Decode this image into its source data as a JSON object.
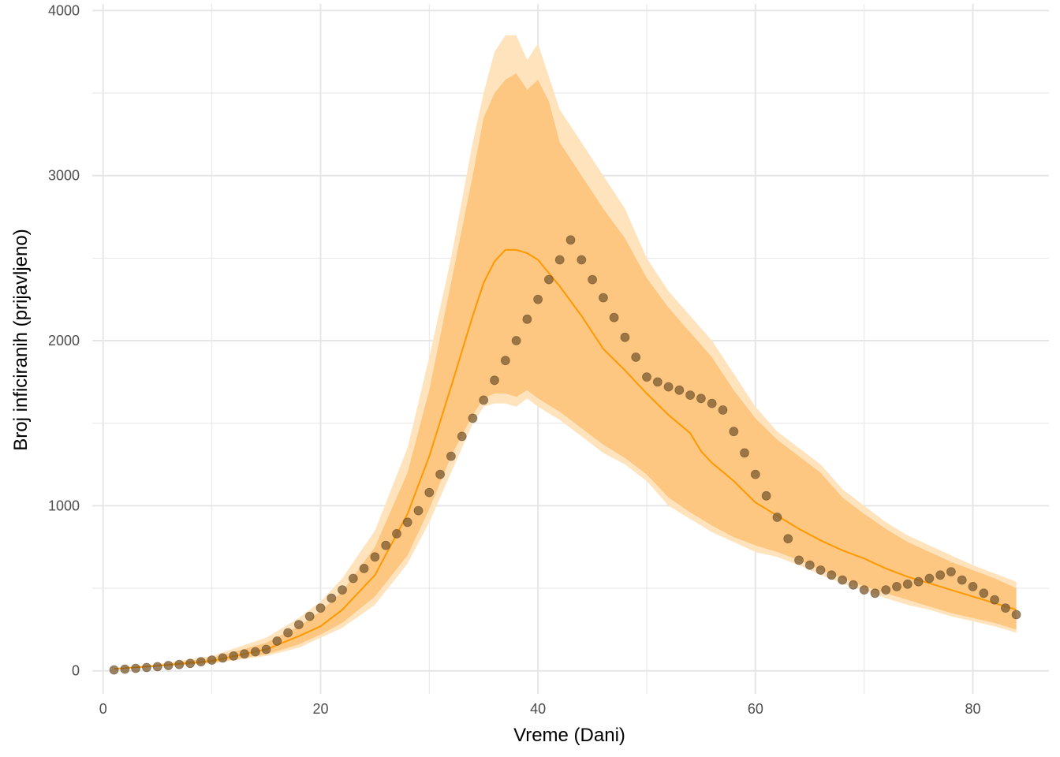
{
  "chart_data": {
    "type": "line",
    "xlabel": "Vreme (Dani)",
    "ylabel": "Broj inficiranih (prijavljeno)",
    "xlim": [
      -1,
      87
    ],
    "ylim": [
      -140,
      4040
    ],
    "x_major_ticks": [
      0,
      20,
      40,
      60,
      80
    ],
    "x_minor_ticks": [
      10,
      30,
      50,
      70
    ],
    "y_major_ticks": [
      0,
      1000,
      2000,
      3000,
      4000
    ],
    "y_minor_ticks": [
      500,
      1500,
      2500,
      3500
    ],
    "x_tick_labels": [
      "0",
      "20",
      "40",
      "60",
      "80"
    ],
    "y_tick_labels": [
      "0",
      "1000",
      "2000",
      "3000",
      "4000"
    ],
    "grid": true,
    "colors": {
      "model_line": "#ff9900",
      "inner_band": "#fdc681",
      "outer_band": "#fee3bd",
      "observed_points": "#7a5a30",
      "grid": "#e6e6e6"
    },
    "series": [
      {
        "kind": "band-outer",
        "points": [
          [
            1,
            10,
            12
          ],
          [
            5,
            25,
            40
          ],
          [
            10,
            45,
            90
          ],
          [
            15,
            90,
            200
          ],
          [
            18,
            140,
            320
          ],
          [
            20,
            200,
            420
          ],
          [
            22,
            260,
            560
          ],
          [
            25,
            400,
            850
          ],
          [
            28,
            650,
            1350
          ],
          [
            30,
            900,
            1900
          ],
          [
            32,
            1200,
            2500
          ],
          [
            34,
            1500,
            3200
          ],
          [
            35,
            1600,
            3500
          ],
          [
            36,
            1620,
            3750
          ],
          [
            37,
            1620,
            3850
          ],
          [
            38,
            1600,
            3850
          ],
          [
            39,
            1650,
            3700
          ],
          [
            40,
            1600,
            3800
          ],
          [
            41,
            1560,
            3600
          ],
          [
            42,
            1520,
            3400
          ],
          [
            44,
            1420,
            3200
          ],
          [
            46,
            1320,
            3000
          ],
          [
            48,
            1250,
            2800
          ],
          [
            50,
            1150,
            2500
          ],
          [
            52,
            1000,
            2300
          ],
          [
            54,
            920,
            2150
          ],
          [
            56,
            840,
            2000
          ],
          [
            58,
            780,
            1800
          ],
          [
            60,
            720,
            1600
          ],
          [
            62,
            690,
            1450
          ],
          [
            64,
            640,
            1350
          ],
          [
            66,
            580,
            1250
          ],
          [
            68,
            530,
            1100
          ],
          [
            70,
            490,
            1000
          ],
          [
            72,
            440,
            900
          ],
          [
            74,
            400,
            820
          ],
          [
            76,
            370,
            760
          ],
          [
            78,
            330,
            700
          ],
          [
            80,
            300,
            640
          ],
          [
            82,
            270,
            590
          ],
          [
            84,
            230,
            540
          ]
        ]
      },
      {
        "kind": "band-inner",
        "points": [
          [
            1,
            12,
            14
          ],
          [
            5,
            27,
            35
          ],
          [
            10,
            48,
            78
          ],
          [
            15,
            100,
            170
          ],
          [
            18,
            160,
            270
          ],
          [
            20,
            220,
            360
          ],
          [
            22,
            290,
            480
          ],
          [
            25,
            450,
            750
          ],
          [
            28,
            700,
            1200
          ],
          [
            30,
            980,
            1700
          ],
          [
            32,
            1300,
            2350
          ],
          [
            34,
            1550,
            3000
          ],
          [
            35,
            1650,
            3350
          ],
          [
            36,
            1680,
            3500
          ],
          [
            37,
            1680,
            3580
          ],
          [
            38,
            1660,
            3620
          ],
          [
            39,
            1700,
            3520
          ],
          [
            40,
            1650,
            3580
          ],
          [
            41,
            1610,
            3450
          ],
          [
            42,
            1570,
            3200
          ],
          [
            44,
            1470,
            3000
          ],
          [
            46,
            1370,
            2800
          ],
          [
            48,
            1290,
            2620
          ],
          [
            50,
            1190,
            2380
          ],
          [
            52,
            1050,
            2200
          ],
          [
            54,
            960,
            2050
          ],
          [
            56,
            880,
            1900
          ],
          [
            58,
            810,
            1700
          ],
          [
            60,
            760,
            1530
          ],
          [
            62,
            720,
            1400
          ],
          [
            64,
            670,
            1300
          ],
          [
            66,
            610,
            1200
          ],
          [
            68,
            560,
            1050
          ],
          [
            70,
            510,
            950
          ],
          [
            72,
            470,
            860
          ],
          [
            74,
            430,
            780
          ],
          [
            76,
            390,
            720
          ],
          [
            78,
            350,
            660
          ],
          [
            80,
            320,
            610
          ],
          [
            82,
            290,
            560
          ],
          [
            84,
            250,
            500
          ]
        ]
      },
      {
        "kind": "model-line",
        "x": [
          1,
          5,
          10,
          15,
          18,
          20,
          22,
          25,
          28,
          30,
          32,
          34,
          35,
          36,
          37,
          38,
          39,
          40,
          42,
          44,
          46,
          48,
          50,
          52,
          54,
          55,
          56,
          58,
          60,
          62,
          64,
          66,
          68,
          70,
          72,
          74,
          76,
          78,
          80,
          82,
          84
        ],
        "y": [
          12,
          30,
          60,
          130,
          210,
          270,
          370,
          580,
          950,
          1300,
          1720,
          2150,
          2350,
          2480,
          2550,
          2550,
          2530,
          2490,
          2330,
          2150,
          1950,
          1820,
          1680,
          1550,
          1440,
          1330,
          1260,
          1150,
          1020,
          940,
          860,
          790,
          730,
          680,
          620,
          570,
          530,
          490,
          450,
          410,
          370
        ]
      },
      {
        "kind": "observed-points",
        "x": [
          1,
          2,
          3,
          4,
          5,
          6,
          7,
          8,
          9,
          10,
          11,
          12,
          13,
          14,
          15,
          16,
          17,
          18,
          19,
          20,
          21,
          22,
          23,
          24,
          25,
          26,
          27,
          28,
          29,
          30,
          31,
          32,
          33,
          34,
          35,
          36,
          37,
          38,
          39,
          40,
          41,
          42,
          43,
          44,
          45,
          46,
          47,
          48,
          49,
          50,
          51,
          52,
          53,
          54,
          55,
          56,
          57,
          58,
          59,
          60,
          61,
          62,
          63,
          64,
          65,
          66,
          67,
          68,
          69,
          70,
          71,
          72,
          73,
          74,
          75,
          76,
          77,
          78,
          79,
          80,
          81,
          82,
          83,
          84
        ],
        "y": [
          5,
          10,
          15,
          20,
          25,
          32,
          38,
          45,
          55,
          65,
          78,
          90,
          102,
          115,
          130,
          180,
          230,
          280,
          330,
          380,
          440,
          490,
          560,
          620,
          690,
          760,
          830,
          900,
          970,
          1080,
          1190,
          1300,
          1420,
          1530,
          1640,
          1760,
          1880,
          2000,
          2130,
          2250,
          2370,
          2490,
          2610,
          2490,
          2370,
          2260,
          2140,
          2020,
          1900,
          1780,
          1750,
          1720,
          1700,
          1670,
          1650,
          1620,
          1580,
          1450,
          1320,
          1190,
          1060,
          930,
          800,
          670,
          640,
          610,
          580,
          550,
          520,
          490,
          470,
          490,
          510,
          525,
          540,
          560,
          580,
          600,
          550,
          510,
          470,
          430,
          380,
          340
        ]
      }
    ]
  }
}
